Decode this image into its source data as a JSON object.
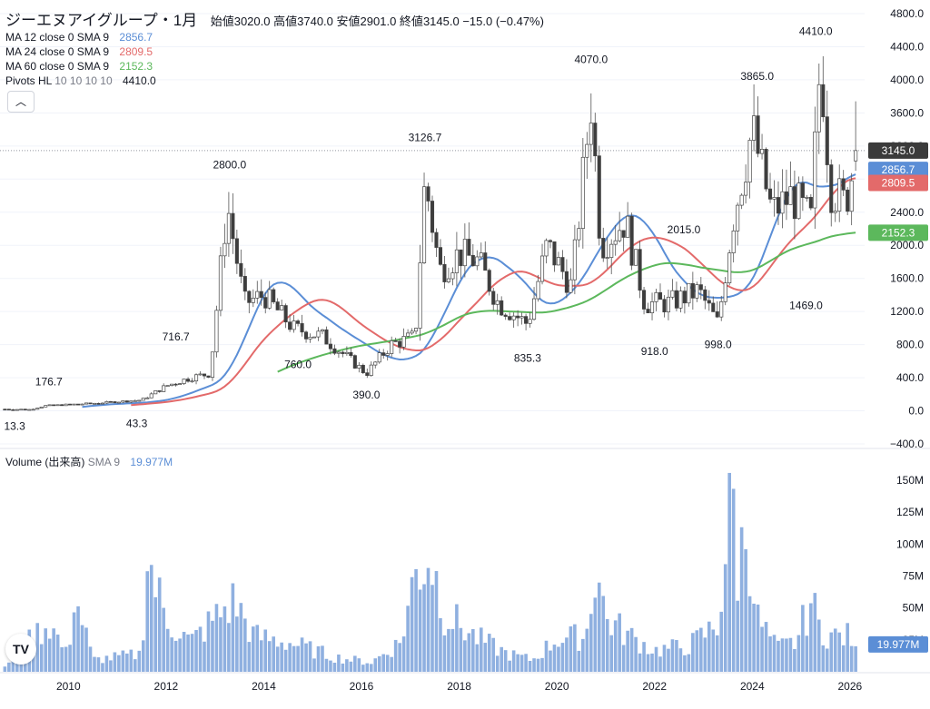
{
  "header": {
    "title": "ジーエヌアイグループ・1月",
    "open_label": "始値",
    "open": "3020.0",
    "high_label": "高値",
    "high": "3740.0",
    "low_label": "安値",
    "low": "2901.0",
    "close_label": "終値",
    "close": "3145.0",
    "change": "−15.0 (−0.47%)"
  },
  "legend": {
    "ma12": {
      "label": "MA 12 close 0 SMA 9",
      "value": "2856.7",
      "color": "#5b8ed6"
    },
    "ma24": {
      "label": "MA 24 close 0 SMA 9",
      "value": "2809.5",
      "color": "#e36a6a"
    },
    "ma60": {
      "label": "MA 60 close 0 SMA 9",
      "value": "2152.3",
      "color": "#5cb85c"
    },
    "pivots": {
      "label": "Pivots HL",
      "params": "10 10 10 10",
      "value": "4410.0"
    }
  },
  "volume_legend": {
    "label": "Volume (出来高)",
    "sma": "SMA 9",
    "value": "19.977M",
    "color": "#5b8ed6"
  },
  "collapse_icon": "chevron-up-icon",
  "logo_icon": "tradingview-logo-icon",
  "logo_text": "TV",
  "chart_data": {
    "type": "candlestick",
    "x_range": [
      2008.6,
      2026.3
    ],
    "y_range": [
      -400,
      4800
    ],
    "y_ticks": [
      -400,
      0,
      400,
      800,
      1200,
      1600,
      2000,
      2400,
      2800,
      3200,
      3600,
      4000,
      4400,
      4800
    ],
    "y_tick_labels": [
      "−400.0",
      "0.0",
      "400.0",
      "800.0",
      "1200.0",
      "1600.0",
      "2000.0",
      "2400.0",
      "2800.0",
      "3200.0",
      "3600.0",
      "4000.0",
      "4400.0",
      "4800.0"
    ],
    "x_ticks": [
      2010,
      2012,
      2014,
      2016,
      2018,
      2020,
      2022,
      2024,
      2026
    ],
    "x_tick_labels": [
      "2010",
      "2012",
      "2014",
      "2016",
      "2018",
      "2020",
      "2022",
      "2024",
      "2026"
    ],
    "price_keypoints": [
      [
        2008.7,
        20
      ],
      [
        2009.2,
        15
      ],
      [
        2009.5,
        60
      ],
      [
        2010.5,
        90
      ],
      [
        2011.5,
        130
      ],
      [
        2012.0,
        300
      ],
      [
        2012.5,
        400
      ],
      [
        2012.9,
        450
      ],
      [
        2013.25,
        2500
      ],
      [
        2013.6,
        1300
      ],
      [
        2014.0,
        1400
      ],
      [
        2014.6,
        1000
      ],
      [
        2015.2,
        900
      ],
      [
        2015.8,
        600
      ],
      [
        2016.1,
        450
      ],
      [
        2016.6,
        800
      ],
      [
        2017.1,
        900
      ],
      [
        2017.3,
        2800
      ],
      [
        2017.6,
        1700
      ],
      [
        2018.0,
        1900
      ],
      [
        2018.4,
        1800
      ],
      [
        2018.8,
        1300
      ],
      [
        2019.4,
        1050
      ],
      [
        2019.8,
        2000
      ],
      [
        2020.3,
        1500
      ],
      [
        2020.7,
        3750
      ],
      [
        2020.9,
        2000
      ],
      [
        2021.4,
        2300
      ],
      [
        2021.8,
        1300
      ],
      [
        2022.3,
        1300
      ],
      [
        2022.9,
        1450
      ],
      [
        2023.3,
        1050
      ],
      [
        2023.6,
        2300
      ],
      [
        2024.0,
        3400
      ],
      [
        2024.4,
        2400
      ],
      [
        2024.8,
        2600
      ],
      [
        2025.2,
        2300
      ],
      [
        2025.4,
        4300
      ],
      [
        2025.6,
        2700
      ],
      [
        2025.9,
        2500
      ],
      [
        2026.15,
        3145
      ]
    ],
    "last": {
      "open": 3020.0,
      "high": 3740.0,
      "low": 2901.0,
      "close": 3145.0
    },
    "pivots": [
      {
        "x": 2008.9,
        "value": "13.3",
        "type": "low"
      },
      {
        "x": 2009.6,
        "value": "176.7",
        "type": "high"
      },
      {
        "x": 2011.4,
        "value": "43.3",
        "type": "low"
      },
      {
        "x": 2012.2,
        "value": "716.7",
        "type": "high"
      },
      {
        "x": 2013.3,
        "value": "2800.0",
        "type": "high"
      },
      {
        "x": 2014.7,
        "value": "760.0",
        "type": "low"
      },
      {
        "x": 2016.1,
        "value": "390.0",
        "type": "low"
      },
      {
        "x": 2017.3,
        "value": "3126.7",
        "type": "high"
      },
      {
        "x": 2019.4,
        "value": "835.3",
        "type": "low"
      },
      {
        "x": 2020.7,
        "value": "4070.0",
        "type": "high"
      },
      {
        "x": 2022.0,
        "value": "918.0",
        "type": "low"
      },
      {
        "x": 2022.6,
        "value": "2015.0",
        "type": "high"
      },
      {
        "x": 2023.3,
        "value": "998.0",
        "type": "low"
      },
      {
        "x": 2024.1,
        "value": "3865.0",
        "type": "high"
      },
      {
        "x": 2025.3,
        "value": "4410.0",
        "type": "high"
      },
      {
        "x": 2025.1,
        "value": "1469.0",
        "type": "low"
      }
    ],
    "ma_last": {
      "ma12": 2856.7,
      "ma24": 2809.5,
      "ma60": 2152.3
    },
    "volume": {
      "y_range": [
        0,
        160
      ],
      "y_ticks": [
        25,
        50,
        75,
        100,
        125,
        150
      ],
      "y_tick_labels": [
        "25M",
        "50M",
        "75M",
        "100M",
        "125M",
        "150M"
      ],
      "unit": "M",
      "keypoints": [
        [
          2008.7,
          5
        ],
        [
          2009.3,
          30
        ],
        [
          2009.6,
          42
        ],
        [
          2010.0,
          12
        ],
        [
          2010.1,
          70
        ],
        [
          2010.5,
          10
        ],
        [
          2011.5,
          15
        ],
        [
          2011.6,
          100
        ],
        [
          2011.8,
          70
        ],
        [
          2012.0,
          45
        ],
        [
          2012.5,
          25
        ],
        [
          2013.0,
          45
        ],
        [
          2013.4,
          60
        ],
        [
          2013.8,
          30
        ],
        [
          2014.5,
          25
        ],
        [
          2015.5,
          12
        ],
        [
          2016.2,
          8
        ],
        [
          2016.8,
          25
        ],
        [
          2017.1,
          83
        ],
        [
          2017.4,
          100
        ],
        [
          2017.7,
          50
        ],
        [
          2018.3,
          30
        ],
        [
          2019.0,
          15
        ],
        [
          2019.5,
          10
        ],
        [
          2020.0,
          28
        ],
        [
          2020.6,
          30
        ],
        [
          2020.8,
          93
        ],
        [
          2021.0,
          45
        ],
        [
          2021.5,
          30
        ],
        [
          2022.0,
          18
        ],
        [
          2022.7,
          22
        ],
        [
          2023.3,
          40
        ],
        [
          2023.6,
          154
        ],
        [
          2023.7,
          85
        ],
        [
          2023.9,
          125
        ],
        [
          2024.1,
          45
        ],
        [
          2024.5,
          20
        ],
        [
          2024.9,
          25
        ],
        [
          2025.2,
          60
        ],
        [
          2025.4,
          35
        ],
        [
          2025.7,
          30
        ],
        [
          2026.0,
          30
        ],
        [
          2026.15,
          20
        ]
      ],
      "last": 19.977
    }
  }
}
